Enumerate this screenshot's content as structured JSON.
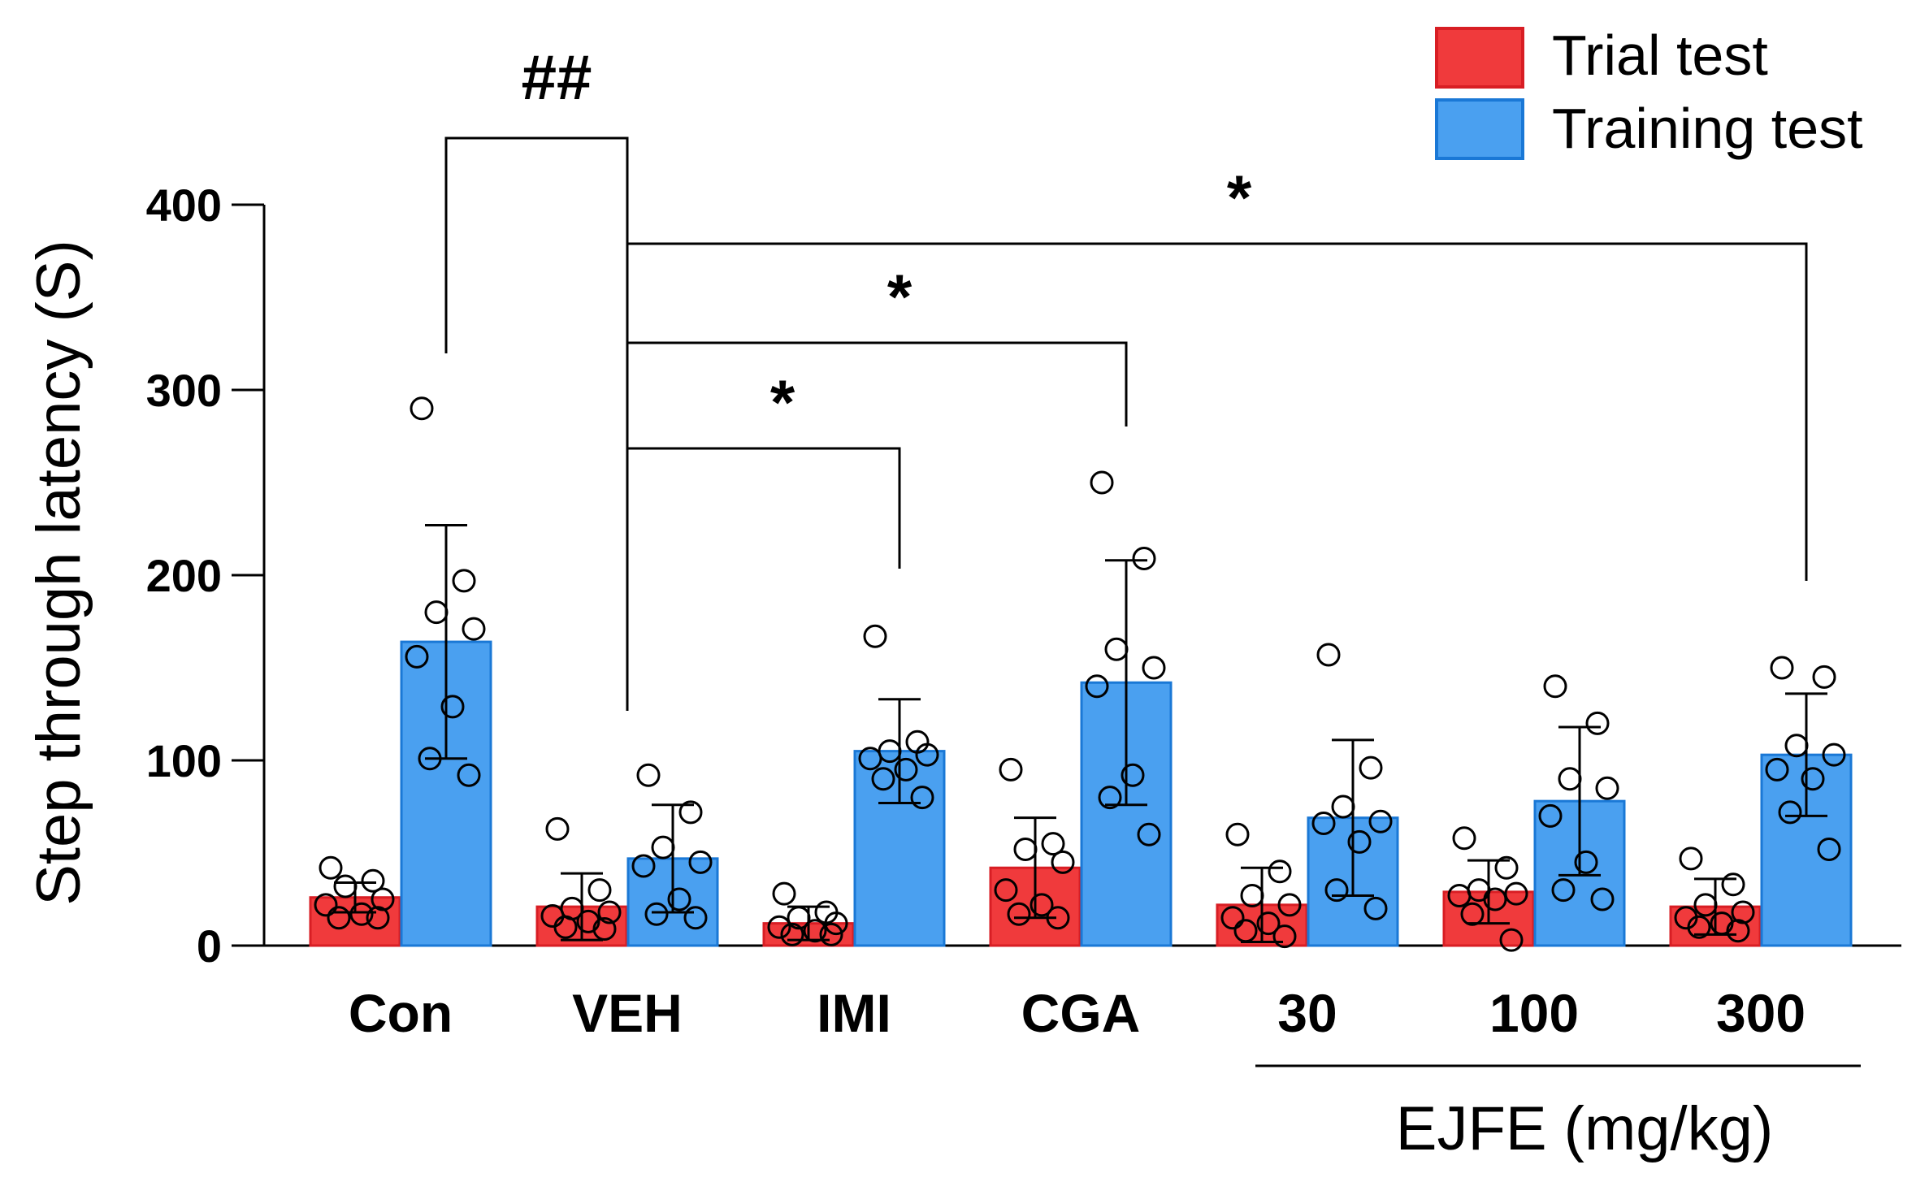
{
  "chart_data": {
    "type": "bar",
    "ylabel": "Step through latency (S)",
    "ylim": [
      0,
      400
    ],
    "yticks": [
      "0",
      "100",
      "200",
      "300",
      "400"
    ],
    "categories": [
      "Con",
      "VEH",
      "IMI",
      "CGA",
      "30",
      "100",
      "300"
    ],
    "group_label": "EJFE (mg/kg)",
    "series": [
      {
        "name": "Trial test",
        "color": "#f03a3c",
        "values": [
          26,
          21,
          12,
          42,
          22,
          29,
          21
        ],
        "errors": [
          8,
          18,
          9,
          27,
          20,
          17,
          15
        ],
        "points": [
          [
            42,
            35,
            32,
            25,
            22,
            17,
            15,
            15
          ],
          [
            63,
            30,
            20,
            18,
            16,
            13,
            10,
            9
          ],
          [
            28,
            18,
            15,
            12,
            10,
            8,
            6,
            6
          ],
          [
            95,
            55,
            52,
            45,
            30,
            22,
            17,
            15
          ],
          [
            60,
            40,
            27,
            22,
            15,
            12,
            8,
            5
          ],
          [
            58,
            42,
            30,
            28,
            27,
            25,
            17,
            3
          ],
          [
            47,
            33,
            22,
            18,
            15,
            12,
            10,
            8
          ]
        ]
      },
      {
        "name": "Training test",
        "color": "#4aa0f0",
        "values": [
          164,
          47,
          105,
          142,
          69,
          78,
          103
        ],
        "errors": [
          63,
          29,
          28,
          66,
          42,
          40,
          33
        ],
        "points": [
          [
            290,
            197,
            180,
            171,
            156,
            129,
            101,
            92
          ],
          [
            92,
            72,
            53,
            45,
            43,
            25,
            17,
            15
          ],
          [
            167,
            110,
            105,
            103,
            101,
            95,
            90,
            80
          ],
          [
            250,
            209,
            160,
            150,
            140,
            92,
            80,
            60
          ],
          [
            157,
            96,
            75,
            67,
            66,
            56,
            30,
            20
          ],
          [
            140,
            120,
            90,
            85,
            70,
            45,
            30,
            25
          ],
          [
            150,
            145,
            108,
            103,
            95,
            90,
            72,
            52
          ]
        ]
      }
    ],
    "significance": [
      {
        "from": "Con",
        "to": "VEH",
        "label": "##"
      },
      {
        "from": "VEH",
        "to": "IMI",
        "label": "*"
      },
      {
        "from": "VEH",
        "to": "CGA",
        "label": "*"
      },
      {
        "from": "VEH",
        "to": "300",
        "label": "*"
      }
    ]
  }
}
